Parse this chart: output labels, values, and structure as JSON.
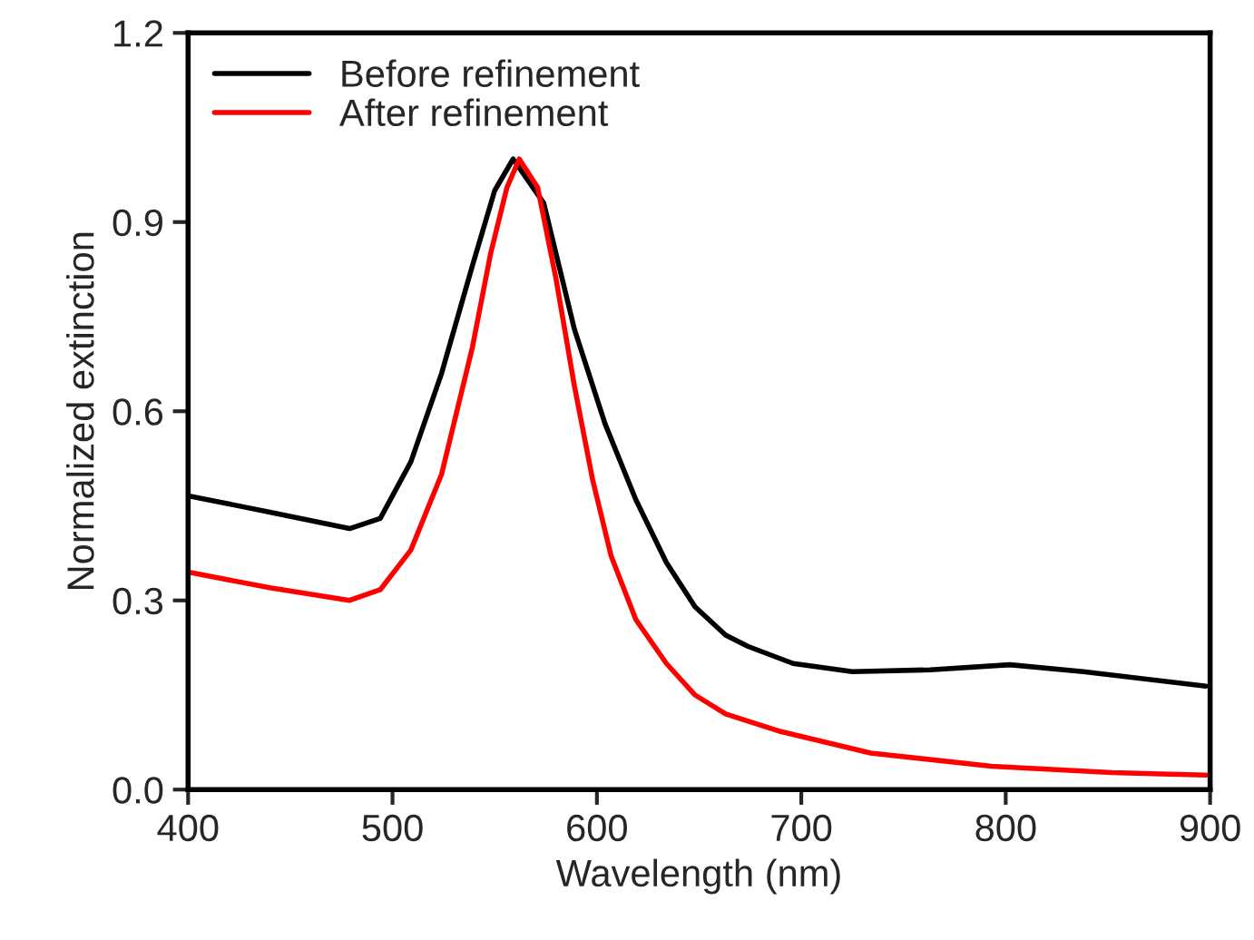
{
  "chart_data": {
    "type": "line",
    "xlabel": "Wavelength (nm)",
    "ylabel": "Normalized extinction",
    "xlim": [
      400,
      900
    ],
    "xticks": [
      400,
      500,
      600,
      700,
      800,
      900
    ],
    "ylim": [
      0,
      1.2
    ],
    "yticks": [
      {
        "value": 0,
        "label": "0.0"
      },
      0.3,
      0.6,
      0.9,
      1.2
    ],
    "grid": false,
    "legend": "top left",
    "marker": "none",
    "line_style": "solid",
    "series": [
      {
        "name": "Before refinement",
        "color": "#000000",
        "x": [
          400,
          440,
          479,
          494,
          509,
          524,
          539,
          550,
          559,
          574,
          589,
          604,
          619,
          634,
          648,
          663,
          674,
          696,
          725,
          763,
          802,
          838,
          898
        ],
        "values": [
          0.466,
          0.44,
          0.414,
          0.43,
          0.52,
          0.66,
          0.83,
          0.95,
          1.0,
          0.93,
          0.73,
          0.58,
          0.46,
          0.36,
          0.29,
          0.245,
          0.227,
          0.2,
          0.187,
          0.19,
          0.198,
          0.187,
          0.164
        ]
      },
      {
        "name": "After refinement",
        "color": "#ff0000",
        "x": [
          400,
          440,
          479,
          494,
          509,
          524,
          539,
          548,
          556,
          562,
          571,
          580,
          589,
          598,
          607,
          619,
          634,
          648,
          663,
          690,
          734,
          793,
          852,
          898
        ],
        "values": [
          0.345,
          0.32,
          0.3,
          0.317,
          0.38,
          0.5,
          0.7,
          0.85,
          0.955,
          1.0,
          0.955,
          0.81,
          0.64,
          0.49,
          0.37,
          0.27,
          0.2,
          0.15,
          0.12,
          0.092,
          0.058,
          0.037,
          0.027,
          0.023
        ]
      }
    ]
  }
}
